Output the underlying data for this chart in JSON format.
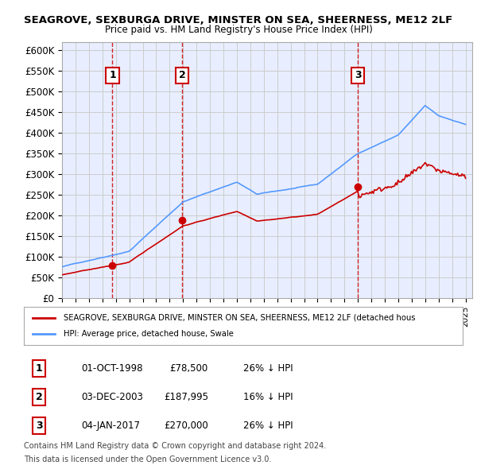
{
  "title1": "SEAGROVE, SEXBURGA DRIVE, MINSTER ON SEA, SHEERNESS, ME12 2LF",
  "title2": "Price paid vs. HM Land Registry's House Price Index (HPI)",
  "ylim": [
    0,
    620000
  ],
  "yticks": [
    0,
    50000,
    100000,
    150000,
    200000,
    250000,
    300000,
    350000,
    400000,
    450000,
    500000,
    550000,
    600000
  ],
  "ytick_labels": [
    "£0",
    "£50K",
    "£100K",
    "£150K",
    "£200K",
    "£250K",
    "£300K",
    "£350K",
    "£400K",
    "£450K",
    "£500K",
    "£550K",
    "£600K"
  ],
  "hpi_color": "#5599ff",
  "price_color": "#cc0000",
  "vline_color": "#cc0000",
  "transactions": [
    {
      "num": 1,
      "date_num": 1998.75,
      "price": 78500,
      "label": "1"
    },
    {
      "num": 2,
      "date_num": 2003.92,
      "price": 187995,
      "label": "2"
    },
    {
      "num": 3,
      "date_num": 2017.01,
      "price": 270000,
      "label": "3"
    }
  ],
  "legend_text1": "SEAGROVE, SEXBURGA DRIVE, MINSTER ON SEA, SHEERNESS, ME12 2LF (detached hous",
  "legend_text2": "HPI: Average price, detached house, Swale",
  "table_rows": [
    {
      "num": "1",
      "date": "01-OCT-1998",
      "price": "£78,500",
      "pct": "26% ↓ HPI"
    },
    {
      "num": "2",
      "date": "03-DEC-2003",
      "price": "£187,995",
      "pct": "16% ↓ HPI"
    },
    {
      "num": "3",
      "date": "04-JAN-2017",
      "price": "£270,000",
      "pct": "26% ↓ HPI"
    }
  ],
  "footnote1": "Contains HM Land Registry data © Crown copyright and database right 2024.",
  "footnote2": "This data is licensed under the Open Government Licence v3.0.",
  "background_color": "#ffffff",
  "plot_bg_color": "#e8eeff"
}
